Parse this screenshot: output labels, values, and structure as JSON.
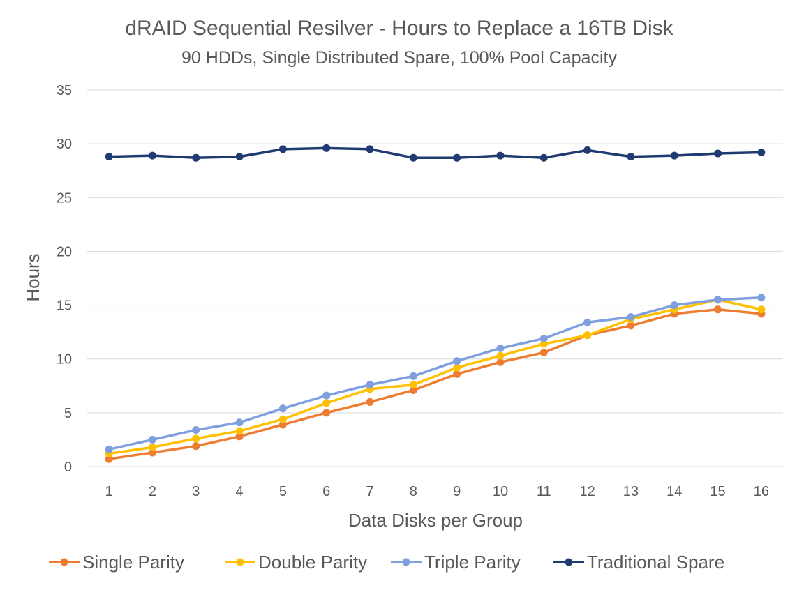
{
  "chart_data": {
    "type": "line",
    "title": "dRAID Sequential Resilver - Hours to Replace a 16TB Disk",
    "subtitle": "90 HDDs, Single Distributed Spare, 100% Pool Capacity",
    "xlabel": "Data Disks per Group",
    "ylabel": "Hours",
    "ylim": [
      0,
      35
    ],
    "yticks": [
      "0",
      "5",
      "10",
      "15",
      "20",
      "25",
      "30",
      "35"
    ],
    "grid": true,
    "legend_position": "bottom",
    "x": [
      "1",
      "2",
      "3",
      "4",
      "5",
      "6",
      "7",
      "8",
      "9",
      "10",
      "11",
      "12",
      "13",
      "14",
      "15",
      "16"
    ],
    "series": [
      {
        "name": "Single Parity",
        "color": "#ed7d31",
        "values": [
          0.7,
          1.3,
          1.9,
          2.8,
          3.9,
          5.0,
          6.0,
          7.1,
          8.6,
          9.7,
          10.6,
          12.2,
          13.1,
          14.2,
          14.6,
          14.2
        ]
      },
      {
        "name": "Double Parity",
        "color": "#ffc000",
        "values": [
          1.2,
          1.8,
          2.6,
          3.3,
          4.4,
          5.9,
          7.2,
          7.6,
          9.2,
          10.3,
          11.4,
          12.2,
          13.7,
          14.6,
          15.5,
          14.6
        ]
      },
      {
        "name": "Triple Parity",
        "color": "#7f9fdf",
        "values": [
          1.6,
          2.5,
          3.4,
          4.1,
          5.4,
          6.6,
          7.6,
          8.4,
          9.8,
          11.0,
          11.9,
          13.4,
          13.9,
          15.0,
          15.5,
          15.7
        ]
      },
      {
        "name": "Traditional Spare",
        "color": "#1f3b72",
        "values": [
          28.8,
          28.9,
          28.7,
          28.8,
          29.5,
          29.6,
          29.5,
          28.7,
          28.7,
          28.9,
          28.7,
          29.4,
          28.8,
          28.9,
          29.1,
          29.2
        ]
      }
    ]
  }
}
